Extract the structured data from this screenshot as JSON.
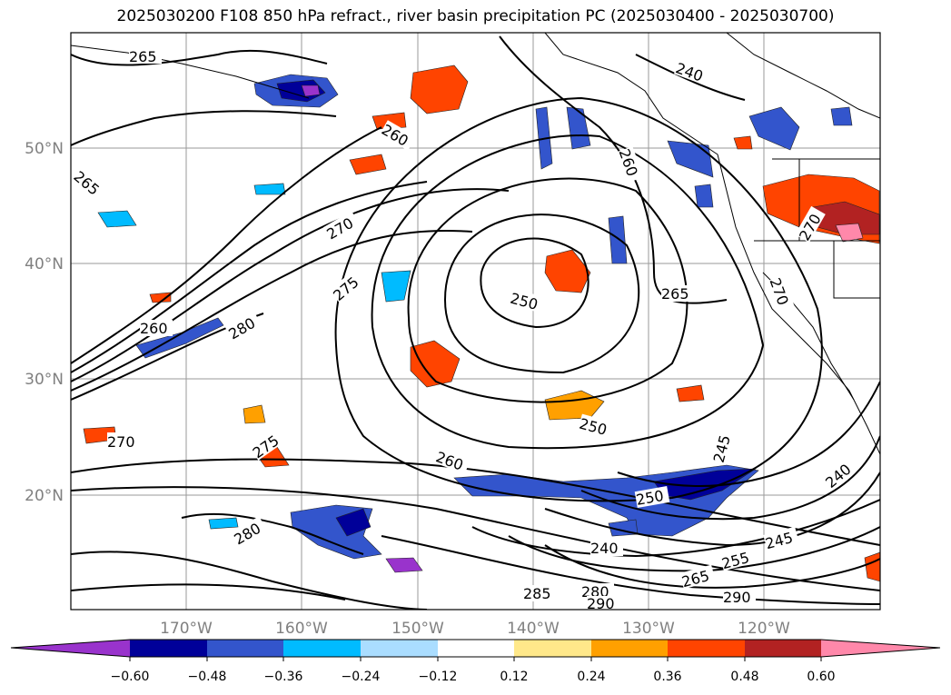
{
  "title": "2025030200 F108 850 hPa refract., river basin precipitation PC (2025030400 - 2025030700)",
  "map": {
    "lat_ticks": [
      "50°N",
      "40°N",
      "30°N",
      "20°N"
    ],
    "lon_ticks": [
      "170°W",
      "160°W",
      "150°W",
      "140°W",
      "130°W",
      "120°W"
    ],
    "grid": true,
    "contour_labels": [
      "265",
      "265",
      "260",
      "270",
      "275",
      "280",
      "260",
      "250",
      "260",
      "265",
      "250",
      "245",
      "240",
      "250",
      "240",
      "245",
      "255",
      "265",
      "280",
      "285",
      "290",
      "260",
      "270",
      "275",
      "280",
      "290",
      "240",
      "270",
      "270"
    ]
  },
  "colorbar": {
    "ticks": [
      "−0.60",
      "−0.48",
      "−0.36",
      "−0.24",
      "−0.12",
      "0.12",
      "0.24",
      "0.36",
      "0.48",
      "0.60"
    ],
    "colors": [
      "#9933cc",
      "#000099",
      "#3355cc",
      "#00bbff",
      "#aaddff",
      "#ffffff",
      "#ffe88a",
      "#ffa000",
      "#ff4400",
      "#b22222",
      "#ff88aa"
    ]
  }
}
